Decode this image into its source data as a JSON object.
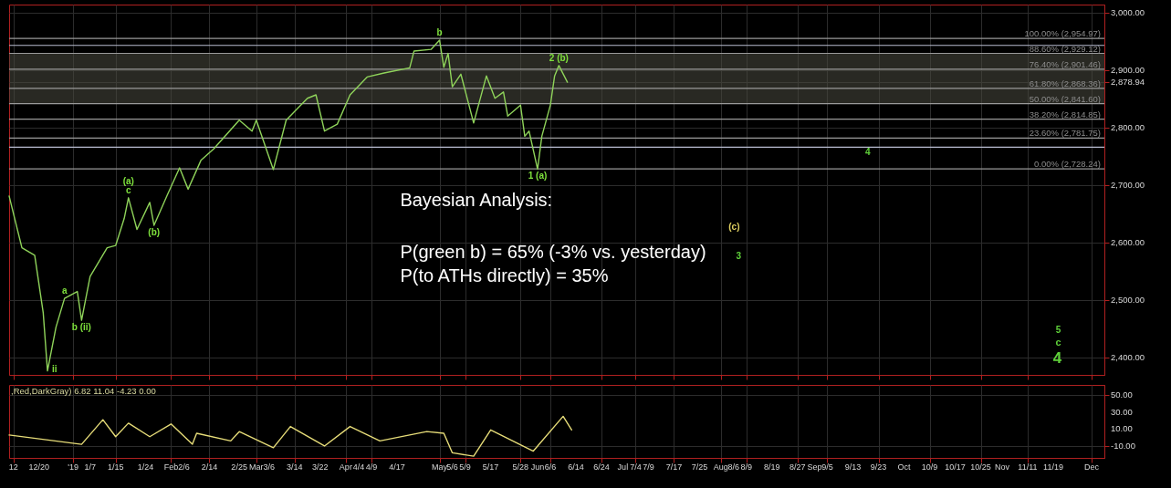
{
  "chart_data": [
    {
      "type": "line",
      "xlim": [
        "2018-12-11",
        "2019-12-05"
      ],
      "ylim": [
        2370,
        3014
      ],
      "xticks": [
        {
          "value": "2018-12-12",
          "label": null
        },
        {
          "value": "2018-12-20",
          "label": null
        },
        {
          "value": "2019-01-01",
          "label": null
        },
        {
          "value": "2019-01-07",
          "label": null
        },
        {
          "value": "2019-01-15",
          "label": null
        },
        {
          "value": "2019-01-24",
          "label": null
        },
        {
          "value": "2019-02-01",
          "label": null
        },
        {
          "value": "2019-02-06",
          "label": null
        },
        {
          "value": "2019-02-14",
          "label": null
        },
        {
          "value": "2019-02-25",
          "label": null
        },
        {
          "value": "2019-03-01",
          "label": null
        },
        {
          "value": "2019-03-06",
          "label": null
        },
        {
          "value": "2019-03-14",
          "label": null
        },
        {
          "value": "2019-03-22",
          "label": null
        },
        {
          "value": "2019-04-01",
          "label": null
        },
        {
          "value": "2019-04-04",
          "label": null
        },
        {
          "value": "2019-04-09",
          "label": null
        },
        {
          "value": "2019-04-17",
          "label": null
        },
        {
          "value": "2019-05-01",
          "label": null
        },
        {
          "value": "2019-05-06",
          "label": null
        },
        {
          "value": "2019-05-09",
          "label": null
        },
        {
          "value": "2019-05-17",
          "label": null
        },
        {
          "value": "2019-05-28",
          "label": null
        },
        {
          "value": "2019-06-01",
          "label": null
        },
        {
          "value": "2019-06-06",
          "label": null
        },
        {
          "value": "2019-06-14",
          "label": null
        },
        {
          "value": "2019-06-24",
          "label": null
        },
        {
          "value": "2019-07-01",
          "label": null
        },
        {
          "value": "2019-07-04",
          "label": null
        },
        {
          "value": "2019-07-09",
          "label": null
        },
        {
          "value": "2019-07-17",
          "label": null
        },
        {
          "value": "2019-07-25",
          "label": null
        },
        {
          "value": "2019-08-01",
          "label": null
        },
        {
          "value": "2019-08-06",
          "label": null
        },
        {
          "value": "2019-08-09",
          "label": null
        },
        {
          "value": "2019-08-19",
          "label": null
        },
        {
          "value": "2019-08-27",
          "label": null
        },
        {
          "value": "2019-09-01",
          "label": null
        },
        {
          "value": "2019-09-05",
          "label": null
        },
        {
          "value": "2019-09-13",
          "label": null
        },
        {
          "value": "2019-09-23",
          "label": null
        },
        {
          "value": "2019-10-01",
          "label": null
        },
        {
          "value": "2019-10-09",
          "label": null
        },
        {
          "value": "2019-10-17",
          "label": null
        },
        {
          "value": "2019-10-25",
          "label": null
        },
        {
          "value": "2019-11-01",
          "label": null
        },
        {
          "value": "2019-11-11",
          "label": null
        },
        {
          "value": "2019-11-19",
          "label": null
        },
        {
          "value": "2019-12-01",
          "label": null
        }
      ],
      "yticks": [
        {
          "value": 2400,
          "label": "2,400.00"
        },
        {
          "value": 2500,
          "label": "2,500.00"
        },
        {
          "value": 2600,
          "label": "2,600.00"
        },
        {
          "value": 2700,
          "label": "2,700.00"
        },
        {
          "value": 2800,
          "label": "2,800.00"
        },
        {
          "value": 2878.94,
          "label": "2,878.94"
        },
        {
          "value": 2900,
          "label": "2,900.00"
        },
        {
          "value": 3000,
          "label": "3,000.00"
        }
      ],
      "tick_labels": "y",
      "grid": true,
      "series": [
        {
          "color": "#8fd35a",
          "x": [
            "2018-12-11",
            "2018-12-14",
            "2018-12-19",
            "2018-12-21",
            "2018-12-24",
            "2018-12-26",
            "2018-12-28",
            "2019-01-02",
            "2019-01-03",
            "2019-01-07",
            "2019-01-11",
            "2019-01-15",
            "2019-01-17",
            "2019-01-18",
            "2019-01-22",
            "2019-01-25",
            "2019-01-28",
            "2019-01-31",
            "2019-02-05",
            "2019-02-07",
            "2019-02-12",
            "2019-02-15",
            "2019-02-25",
            "2019-02-28",
            "2019-03-01",
            "2019-03-07",
            "2019-03-12",
            "2019-03-19",
            "2019-03-21",
            "2019-03-25",
            "2019-03-28",
            "2019-04-02",
            "2019-04-08",
            "2019-04-12",
            "2019-04-22",
            "2019-04-23",
            "2019-04-29",
            "2019-05-01",
            "2019-05-02",
            "2019-05-03",
            "2019-05-06",
            "2019-05-08",
            "2019-05-13",
            "2019-05-16",
            "2019-05-20",
            "2019-05-22",
            "2019-05-23",
            "2019-05-28",
            "2019-05-29",
            "2019-05-30",
            "2019-06-03",
            "2019-06-04",
            "2019-06-06",
            "2019-06-07",
            "2019-06-10",
            "2019-06-12"
          ],
          "values": [
            2681,
            2591,
            2578,
            2478,
            2377,
            2453,
            2503,
            2515,
            2465,
            2541,
            2591,
            2595,
            2642,
            2678,
            2623,
            2670,
            2630,
            2681,
            2730,
            2693,
            2743,
            2763,
            2813,
            2794,
            2813,
            2727,
            2813,
            2851,
            2857,
            2794,
            2806,
            2857,
            2888,
            2895,
            2904,
            2933,
            2936,
            2952,
            2905,
            2929,
            2871,
            2893,
            2808,
            2890,
            2851,
            2862,
            2820,
            2839,
            2785,
            2794,
            2728,
            2785,
            2839,
            2890,
            2908,
            2879
          ]
        }
      ],
      "ref_lines": [
        {
          "axis": "y",
          "value": 2954.97,
          "label": "100.00% (2,954.97)",
          "color": "#9a9a9a"
        },
        {
          "axis": "y",
          "value": 2929.12,
          "label": "88.60% (2,929.12)",
          "color": "#9a9a9a"
        },
        {
          "axis": "y",
          "value": 2901.46,
          "label": "76.40% (2,901.46)",
          "color": "#9a9a9a"
        },
        {
          "axis": "y",
          "value": 2868.36,
          "label": "61.80% (2,868.36)",
          "color": "#9a9a9a"
        },
        {
          "axis": "y",
          "value": 2841.6,
          "label": "50.00% (2,841.60)",
          "color": "#9a9a9a"
        },
        {
          "axis": "y",
          "value": 2814.85,
          "label": "38.20% (2,814.85)",
          "color": "#9a9a9a"
        },
        {
          "axis": "y",
          "value": 2781.75,
          "label": "23.60% (2,781.75)",
          "color": "#9a9a9a"
        },
        {
          "axis": "y",
          "value": 2728.24,
          "label": "0.00% (2,728.24)",
          "color": "#9a9a9a"
        },
        {
          "axis": "y",
          "value": 2943,
          "color": "#b8bcd0"
        },
        {
          "axis": "y",
          "value": 2766,
          "color": "#b8bcd0"
        }
      ],
      "bands": [
        {
          "axis": "y",
          "from": 2842,
          "to": 2930,
          "color": "#4a4a40"
        }
      ],
      "annotations": [
        "Bayesian Analysis:",
        "P(green b) = 65% (-3% vs. yesterday)",
        "P(to ATHs directly) = 35%",
        "(c)",
        "3",
        "4",
        "5",
        "c",
        "4",
        {
          "text": "b",
          "x": "2019-05-01",
          "y": 2952
        },
        {
          "text": "2 (b)",
          "x": "2019-06-10",
          "y": 2908
        },
        {
          "text": "1 (a)",
          "x": "2019-06-03",
          "y": 2728
        },
        {
          "text": "c",
          "x": "2019-01-18",
          "y": 2678
        },
        {
          "text": "(a)",
          "x": "2019-01-18",
          "y": 2678
        },
        {
          "text": "(b)",
          "x": "2019-01-28",
          "y": 2630
        },
        {
          "text": "a",
          "x": "2018-12-28",
          "y": 2503
        },
        {
          "text": "b (ii)",
          "x": "2019-01-03",
          "y": 2465
        },
        {
          "text": "ii",
          "x": "2018-12-24",
          "y": 2377
        }
      ]
    },
    {
      "type": "line",
      "xlim": [
        "2018-12-11",
        "2019-12-05"
      ],
      "ylim": [
        -24,
        62
      ],
      "xticks": [
        {
          "value": "2018-12-12",
          "label": "12"
        },
        {
          "value": "2018-12-20",
          "label": "12/20"
        },
        {
          "value": "2019-01-01",
          "label": "'19"
        },
        {
          "value": "2019-01-07",
          "label": "1/7"
        },
        {
          "value": "2019-01-15",
          "label": "1/15"
        },
        {
          "value": "2019-01-24",
          "label": "1/24"
        },
        {
          "value": "2019-02-01",
          "label": "Feb"
        },
        {
          "value": "2019-02-06",
          "label": "2/6"
        },
        {
          "value": "2019-02-14",
          "label": "2/14"
        },
        {
          "value": "2019-02-25",
          "label": "2/25"
        },
        {
          "value": "2019-03-01",
          "label": "Mar"
        },
        {
          "value": "2019-03-06",
          "label": "3/6"
        },
        {
          "value": "2019-03-14",
          "label": "3/14"
        },
        {
          "value": "2019-03-22",
          "label": "3/22"
        },
        {
          "value": "2019-04-01",
          "label": "Apr"
        },
        {
          "value": "2019-04-04",
          "label": "4/4"
        },
        {
          "value": "2019-04-09",
          "label": "4/9"
        },
        {
          "value": "2019-04-17",
          "label": "4/17"
        },
        {
          "value": "2019-05-01",
          "label": "May"
        },
        {
          "value": "2019-05-06",
          "label": "5/6"
        },
        {
          "value": "2019-05-09",
          "label": "5/9"
        },
        {
          "value": "2019-05-17",
          "label": "5/17"
        },
        {
          "value": "2019-05-28",
          "label": "5/28"
        },
        {
          "value": "2019-06-01",
          "label": "Jun"
        },
        {
          "value": "2019-06-06",
          "label": "6/6"
        },
        {
          "value": "2019-06-14",
          "label": "6/14"
        },
        {
          "value": "2019-06-24",
          "label": "6/24"
        },
        {
          "value": "2019-07-01",
          "label": "Jul"
        },
        {
          "value": "2019-07-04",
          "label": "7/4"
        },
        {
          "value": "2019-07-09",
          "label": "7/9"
        },
        {
          "value": "2019-07-17",
          "label": "7/17"
        },
        {
          "value": "2019-07-25",
          "label": "7/25"
        },
        {
          "value": "2019-08-01",
          "label": "Aug"
        },
        {
          "value": "2019-08-06",
          "label": "8/6"
        },
        {
          "value": "2019-08-09",
          "label": "8/9"
        },
        {
          "value": "2019-08-19",
          "label": "8/19"
        },
        {
          "value": "2019-08-27",
          "label": "8/27"
        },
        {
          "value": "2019-09-01",
          "label": "Sep"
        },
        {
          "value": "2019-09-05",
          "label": "9/5"
        },
        {
          "value": "2019-09-13",
          "label": "9/13"
        },
        {
          "value": "2019-09-23",
          "label": "9/23"
        },
        {
          "value": "2019-10-01",
          "label": "Oct"
        },
        {
          "value": "2019-10-09",
          "label": "10/9"
        },
        {
          "value": "2019-10-17",
          "label": "10/17"
        },
        {
          "value": "2019-10-25",
          "label": "10/25"
        },
        {
          "value": "2019-11-01",
          "label": "Nov"
        },
        {
          "value": "2019-11-11",
          "label": "11/11"
        },
        {
          "value": "2019-11-19",
          "label": "11/19"
        },
        {
          "value": "2019-12-01",
          "label": "Dec"
        }
      ],
      "yticks": [
        {
          "value": -10,
          "label": "-10.00"
        },
        {
          "value": 10,
          "label": "10.00"
        },
        {
          "value": 30,
          "label": "30.00"
        },
        {
          "value": 50,
          "label": "50.00"
        }
      ],
      "grid": true,
      "series": [
        {
          "color": "#e6dc78",
          "x": [
            "2018-12-11",
            "2019-01-03",
            "2019-01-10",
            "2019-01-15",
            "2019-01-18",
            "2019-01-25",
            "2019-02-01",
            "2019-02-08",
            "2019-02-11",
            "2019-02-21",
            "2019-02-25",
            "2019-03-07",
            "2019-03-13",
            "2019-03-25",
            "2019-04-02",
            "2019-04-11",
            "2019-04-26",
            "2019-05-02",
            "2019-05-06",
            "2019-05-13",
            "2019-05-17",
            "2019-05-31",
            "2019-06-11",
            "2019-06-13"
          ],
          "values": [
            3,
            -8,
            21,
            1,
            17,
            1,
            16,
            -8,
            5,
            -4,
            7,
            -12,
            13,
            -10,
            13,
            -4,
            7,
            5,
            -18,
            -22,
            9,
            -16,
            25,
            9
          ]
        }
      ],
      "annotations": [
        ",Red,DarkGray)  6.82  11.04  -4.23  0.00"
      ]
    }
  ]
}
